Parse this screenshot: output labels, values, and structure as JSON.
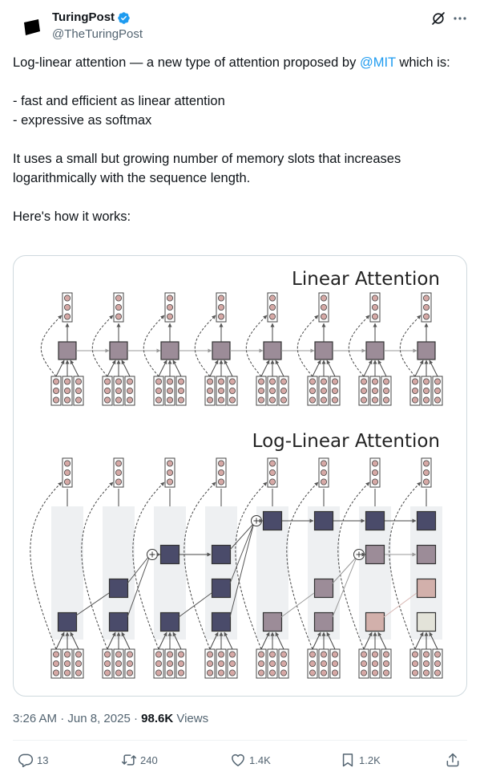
{
  "author": {
    "display_name": "TuringPost",
    "handle": "@TheTuringPost",
    "verified": true,
    "avatar_icon": "turingpost-logo-icon"
  },
  "header_icons": [
    "grok-icon",
    "more-icon"
  ],
  "tweet": {
    "text_before_mention": "Log-linear attention — a new type of attention proposed by ",
    "mention": "@MIT",
    "text_after_mention": " which is:\n\n- fast and efficient as linear attention\n- expressive as softmax\n\nIt uses a small but growing number of memory slots that increases logarithmically with the sequence length.\n\nHere's how it works:"
  },
  "figure": {
    "top_title": "Linear Attention",
    "bottom_title": "Log-Linear Attention",
    "colors": {
      "state_dark": "#4a4b6a",
      "state_medium": "#9c8c98",
      "state_pink": "#d2b0ab",
      "state_light": "#e3e3d9",
      "token_dot": "#d6a9a6",
      "column_bg": "#eef0f2"
    }
  },
  "meta": {
    "time": "3:26 AM",
    "separator": "·",
    "date": "Jun 8, 2025",
    "views_count": "98.6K",
    "views_label": "Views"
  },
  "actions": {
    "reply_count": "13",
    "retweet_count": "240",
    "like_count": "1.4K",
    "bookmark_count": "1.2K"
  },
  "colors": {
    "accent": "#1d9bf0",
    "text": "#0f1419",
    "secondary": "#536471"
  }
}
